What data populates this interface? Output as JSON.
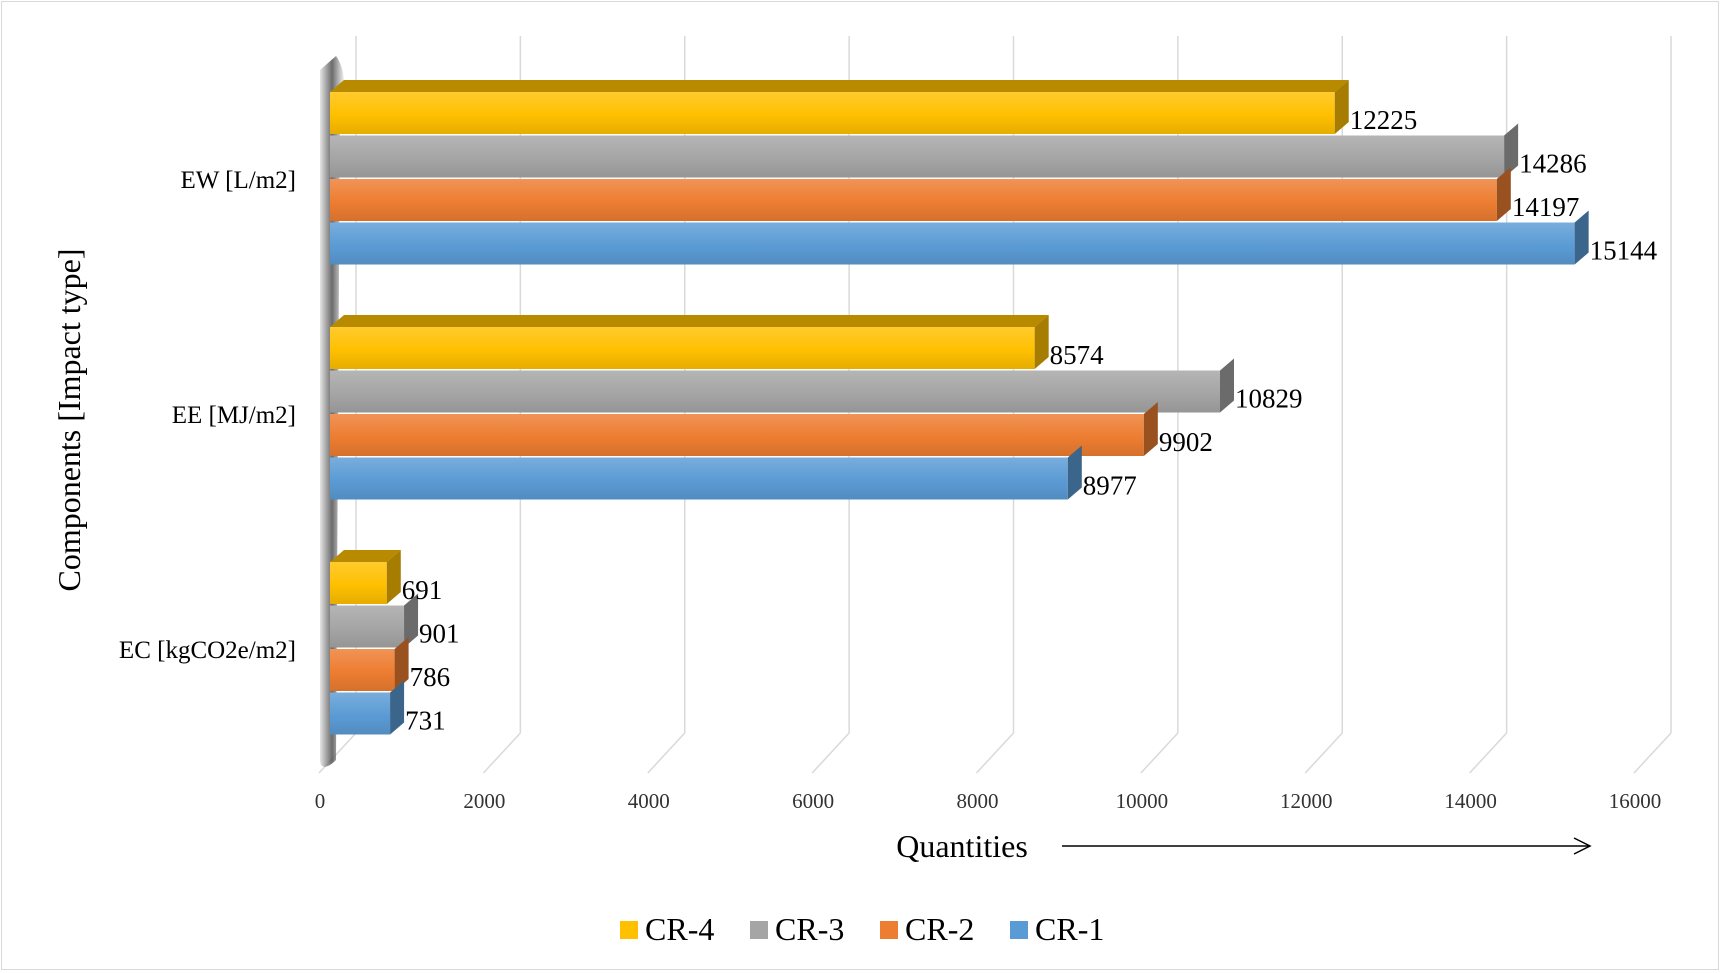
{
  "chart_data": {
    "type": "bar",
    "orientation": "horizontal",
    "title": "",
    "xlabel": "Quantities",
    "ylabel": "Components  [Impact type]",
    "xlim": [
      0,
      16000
    ],
    "xticks": [
      "0",
      "2000",
      "4000",
      "6000",
      "8000",
      "10000",
      "12000",
      "14000",
      "16000"
    ],
    "grid": true,
    "legend_position": "bottom",
    "categories": [
      "EW [L/m2]",
      "EE [MJ/m2]",
      "EC [kgCO2e/m2]"
    ],
    "series": [
      {
        "name": "CR-4",
        "color": "#ffc000",
        "values": [
          12225,
          8574,
          691
        ]
      },
      {
        "name": "CR-3",
        "color": "#a5a5a5",
        "values": [
          14286,
          10829,
          901
        ]
      },
      {
        "name": "CR-2",
        "color": "#ed7d31",
        "values": [
          14197,
          9902,
          786
        ]
      },
      {
        "name": "CR-1",
        "color": "#5b9bd5",
        "values": [
          15144,
          8977,
          731
        ]
      }
    ]
  }
}
